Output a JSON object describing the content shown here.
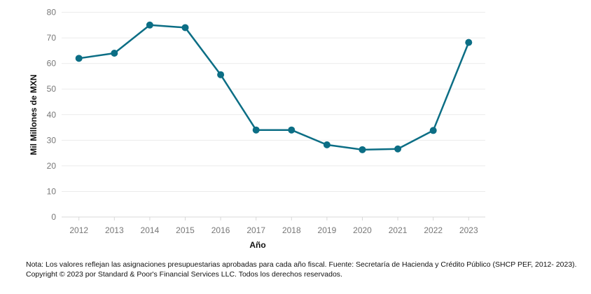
{
  "chart_data": {
    "type": "line",
    "title": "",
    "xlabel": "Año",
    "ylabel": "Mil Millones de MXN",
    "ylim": [
      0,
      80
    ],
    "yticks": [
      0,
      10,
      20,
      30,
      40,
      50,
      60,
      70,
      80
    ],
    "grid": true,
    "categories": [
      "2012",
      "2013",
      "2014",
      "2015",
      "2016",
      "2017",
      "2018",
      "2019",
      "2020",
      "2021",
      "2022",
      "2023"
    ],
    "series": [
      {
        "values": [
          62,
          64,
          75,
          74,
          55.6,
          34,
          34,
          28.2,
          26.3,
          26.6,
          33.8,
          68.2
        ],
        "color": "#0c6e85"
      }
    ]
  },
  "footnote": {
    "note": "Nota: Los valores reflejan las asignaciones presupuestarias aprobadas para cada año fiscal. Fuente: Secretaría de Hacienda y Crédito Público (SHCP PEF, 2012- 2023).",
    "copyright": "Copyright © 2023 por Standard & Poor's Financial Services LLC. Todos los derechos reservados."
  }
}
